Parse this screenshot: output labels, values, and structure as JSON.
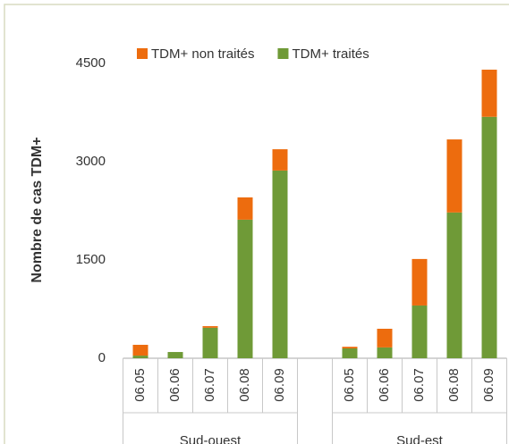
{
  "chart_data": {
    "type": "stacked-bar",
    "y_label": "Nombre de cas TDM+",
    "categories": [
      "06.05",
      "06.06",
      "06.07",
      "06.08",
      "06.09",
      null,
      "06.05",
      "06.06",
      "06.07",
      "06.08",
      "06.09"
    ],
    "groups": [
      "Sud-ouest",
      "Sud-est"
    ],
    "series": [
      {
        "name": "TDM+ non traités",
        "color": "#ed6c0e",
        "values": [
          165,
          0,
          25,
          340,
          325,
          null,
          25,
          285,
          710,
          1115,
          720
        ]
      },
      {
        "name": "TDM+ traités",
        "color": "#6f9a37",
        "values": [
          40,
          95,
          465,
          2115,
          2865,
          null,
          150,
          165,
          805,
          2225,
          3685
        ]
      }
    ],
    "ylim": [
      0,
      4500
    ],
    "yticks": [
      0,
      1500,
      3000,
      4500
    ],
    "grid": false,
    "legend": "top"
  }
}
